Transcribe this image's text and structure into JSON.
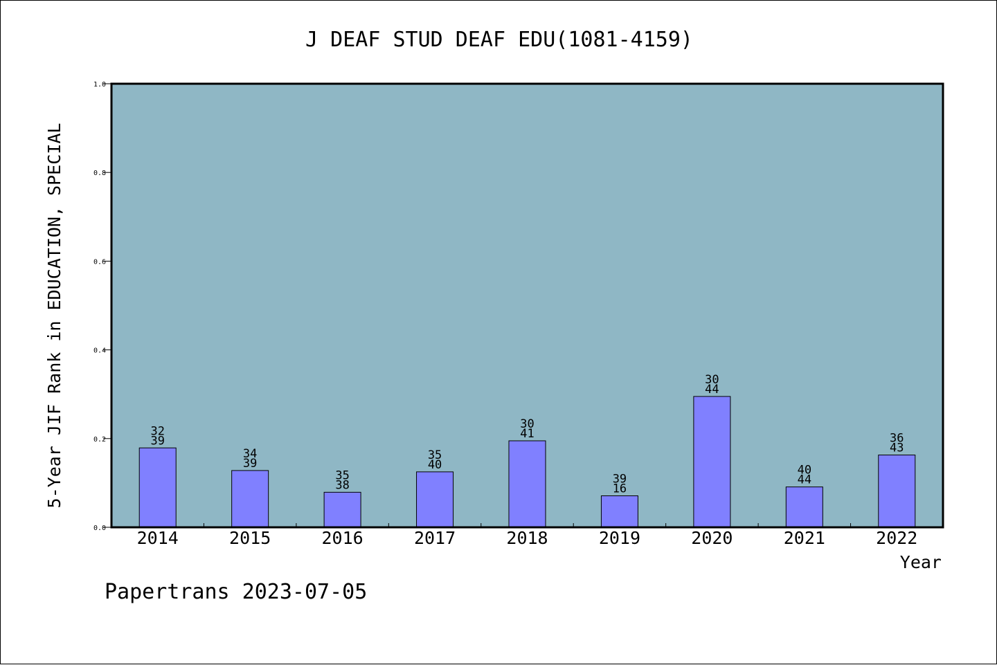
{
  "chart_data": {
    "type": "bar",
    "title": "J DEAF STUD DEAF EDU(1081-4159)",
    "xlabel": "Year",
    "ylabel": "5-Year JIF Rank in EDUCATION, SPECIAL",
    "categories": [
      "2014",
      "2015",
      "2016",
      "2017",
      "2018",
      "2019",
      "2020",
      "2021",
      "2022"
    ],
    "values": [
      0.179,
      0.128,
      0.079,
      0.125,
      0.195,
      0.071,
      0.295,
      0.091,
      0.163
    ],
    "labels_top": [
      "32",
      "34",
      "35",
      "35",
      "30",
      "39",
      "30",
      "40",
      "36"
    ],
    "labels_bottom": [
      "39",
      "39",
      "38",
      "40",
      "41",
      "16",
      "44",
      "44",
      "43"
    ],
    "ylim": [
      0,
      1.0
    ],
    "yticks": [
      "0.0",
      "0.2",
      "0.4",
      "0.6",
      "0.8",
      "1.0"
    ],
    "grid": false,
    "legend": "none",
    "colors": {
      "plot_bg": "#8fb7c5",
      "bar": "#8080ff",
      "axis": "#000000"
    }
  },
  "footer": {
    "watermark": "Papertrans 2023-07-05"
  }
}
